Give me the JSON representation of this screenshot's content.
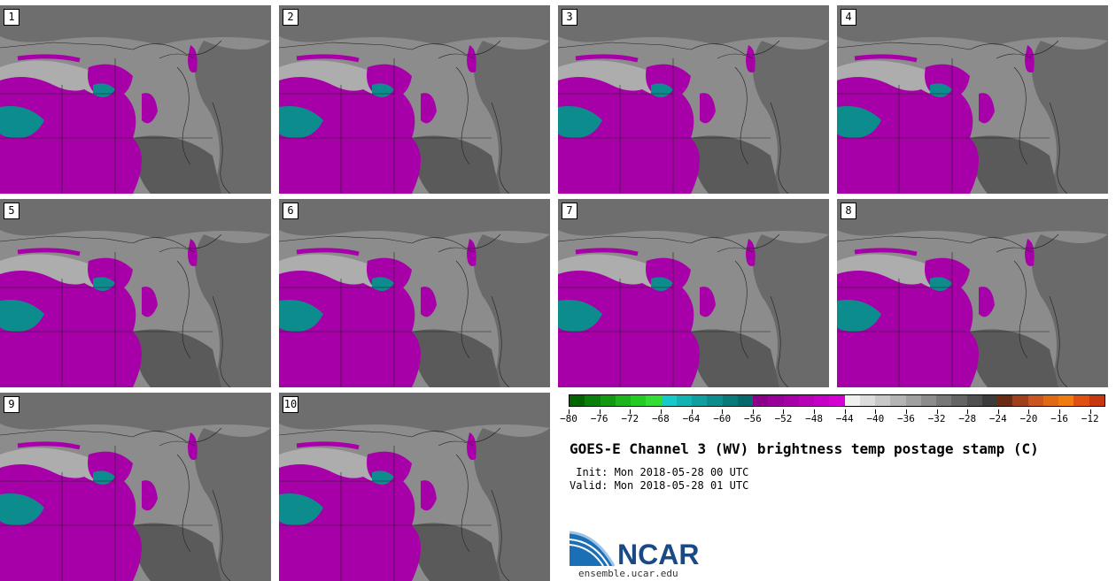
{
  "panels": [
    {
      "label": "1"
    },
    {
      "label": "2"
    },
    {
      "label": "3"
    },
    {
      "label": "4"
    },
    {
      "label": "5"
    },
    {
      "label": "6"
    },
    {
      "label": "7"
    },
    {
      "label": "8"
    },
    {
      "label": "9"
    },
    {
      "label": "10"
    }
  ],
  "colorbar": {
    "colors": [
      "#006400",
      "#0a7f0a",
      "#129a12",
      "#1cb51c",
      "#22cc22",
      "#33dd33",
      "#17c9c9",
      "#14b3b3",
      "#109f9f",
      "#0c8c8c",
      "#097a7a",
      "#066a6a",
      "#8b008b",
      "#990099",
      "#a800a8",
      "#b700b7",
      "#c600c6",
      "#d400d4",
      "#f0f0f0",
      "#dcdcdc",
      "#c8c8c8",
      "#b4b4b4",
      "#a0a0a0",
      "#8c8c8c",
      "#787878",
      "#646464",
      "#505050",
      "#3c3c3c",
      "#6b2a12",
      "#a0401a",
      "#c8561e",
      "#e06a14",
      "#f07c10",
      "#e05010",
      "#c83810"
    ],
    "tick_labels": [
      "−80",
      "−76",
      "−72",
      "−68",
      "−64",
      "−60",
      "−56",
      "−52",
      "−48",
      "−44",
      "−40",
      "−36",
      "−32",
      "−28",
      "−24",
      "−20",
      "−16",
      "−12"
    ]
  },
  "title": "GOES-E Channel 3 (WV) brightness temp postage stamp (C)",
  "init": " Init: Mon 2018-05-28 00 UTC",
  "valid": "Valid: Mon 2018-05-28 01 UTC",
  "logo": {
    "text": "NCAR",
    "url": "ensemble.ucar.edu"
  }
}
